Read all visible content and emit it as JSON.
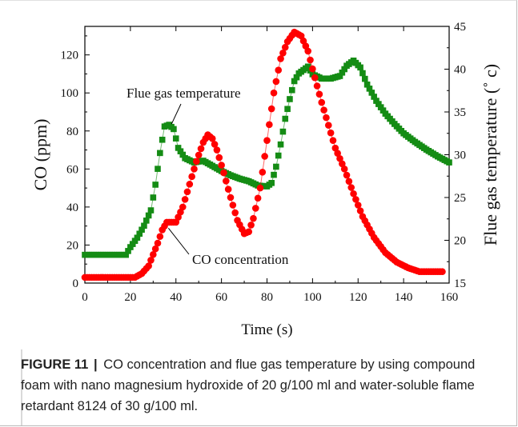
{
  "chart_data": {
    "type": "scatter",
    "xlabel": "Time (s)",
    "ylabel_left": "CO  (ppm)",
    "ylabel_right": "Flue gas temperature (˚ c)",
    "xlim": [
      0,
      160
    ],
    "ylim_left": [
      0,
      135
    ],
    "ylim_right": [
      15,
      45
    ],
    "x_ticks": [
      "0",
      "20",
      "40",
      "60",
      "80",
      "100",
      "120",
      "140",
      "160"
    ],
    "y_left_ticks": [
      "0",
      "20",
      "40",
      "60",
      "80",
      "100",
      "120"
    ],
    "y_right_ticks": [
      "15",
      "20",
      "25",
      "30",
      "35",
      "40",
      "45"
    ],
    "series": [
      {
        "name": "CO concentration",
        "axis": "left",
        "color": "#ff0000",
        "marker": "circle",
        "points": [
          [
            0,
            3
          ],
          [
            22,
            3
          ],
          [
            25,
            5
          ],
          [
            28,
            9
          ],
          [
            30,
            15
          ],
          [
            32,
            21
          ],
          [
            34,
            28
          ],
          [
            36,
            32
          ],
          [
            40,
            32
          ],
          [
            43,
            40
          ],
          [
            46,
            52
          ],
          [
            49,
            64
          ],
          [
            52,
            74
          ],
          [
            54,
            78
          ],
          [
            56,
            76
          ],
          [
            58,
            70
          ],
          [
            61,
            58
          ],
          [
            64,
            45
          ],
          [
            67,
            33
          ],
          [
            70,
            26
          ],
          [
            72,
            27
          ],
          [
            74,
            34
          ],
          [
            77,
            50
          ],
          [
            80,
            75
          ],
          [
            83,
            100
          ],
          [
            86,
            118
          ],
          [
            89,
            127
          ],
          [
            92,
            132
          ],
          [
            95,
            130
          ],
          [
            98,
            122
          ],
          [
            101,
            108
          ],
          [
            104,
            95
          ],
          [
            107,
            83
          ],
          [
            110,
            71
          ],
          [
            114,
            60
          ],
          [
            118,
            47
          ],
          [
            122,
            35
          ],
          [
            127,
            24
          ],
          [
            132,
            16
          ],
          [
            137,
            11
          ],
          [
            142,
            8
          ],
          [
            147,
            6
          ],
          [
            152,
            6
          ],
          [
            157,
            6
          ]
        ]
      },
      {
        "name": "Flue gas temperature",
        "axis": "right",
        "color": "#148c14",
        "marker": "square",
        "points": [
          [
            0,
            18.3
          ],
          [
            18,
            18.3
          ],
          [
            20,
            19.2
          ],
          [
            23,
            20.3
          ],
          [
            26,
            21.7
          ],
          [
            29,
            23.5
          ],
          [
            31,
            26.5
          ],
          [
            33,
            30.2
          ],
          [
            35,
            33.3
          ],
          [
            37,
            33.5
          ],
          [
            39,
            33.0
          ],
          [
            41,
            30.8
          ],
          [
            44,
            29.6
          ],
          [
            48,
            29.1
          ],
          [
            52,
            29.3
          ],
          [
            56,
            28.7
          ],
          [
            60,
            28.1
          ],
          [
            64,
            27.6
          ],
          [
            68,
            27.2
          ],
          [
            72,
            26.9
          ],
          [
            76,
            26.4
          ],
          [
            80,
            26.3
          ],
          [
            82,
            26.7
          ],
          [
            84,
            28.6
          ],
          [
            86,
            31.2
          ],
          [
            88,
            34.2
          ],
          [
            90,
            36.5
          ],
          [
            92,
            38.6
          ],
          [
            94,
            39.5
          ],
          [
            98,
            40.3
          ],
          [
            100,
            39.4
          ],
          [
            104,
            38.9
          ],
          [
            108,
            38.9
          ],
          [
            112,
            39.2
          ],
          [
            115,
            40.4
          ],
          [
            118,
            41.0
          ],
          [
            121,
            40.2
          ],
          [
            124,
            38.2
          ],
          [
            128,
            36.3
          ],
          [
            132,
            34.8
          ],
          [
            136,
            33.6
          ],
          [
            140,
            32.5
          ],
          [
            145,
            31.5
          ],
          [
            150,
            30.6
          ],
          [
            155,
            29.8
          ],
          [
            160,
            29.1
          ]
        ]
      }
    ],
    "annotations": [
      {
        "text": "Flue gas temperature",
        "target_series": "Flue gas temperature",
        "at": [
          37,
          33.3
        ]
      },
      {
        "text": "CO concentration",
        "target_series": "CO concentration",
        "at": [
          36,
          31
        ]
      }
    ]
  },
  "caption": {
    "label": "FIGURE 11",
    "separator": "|",
    "text": "CO concentration and flue gas temperature by using compound foam with nano magnesium hydroxide of 20 g/100 ml and water-soluble flame retardant 8124 of 30 g/100 ml."
  }
}
